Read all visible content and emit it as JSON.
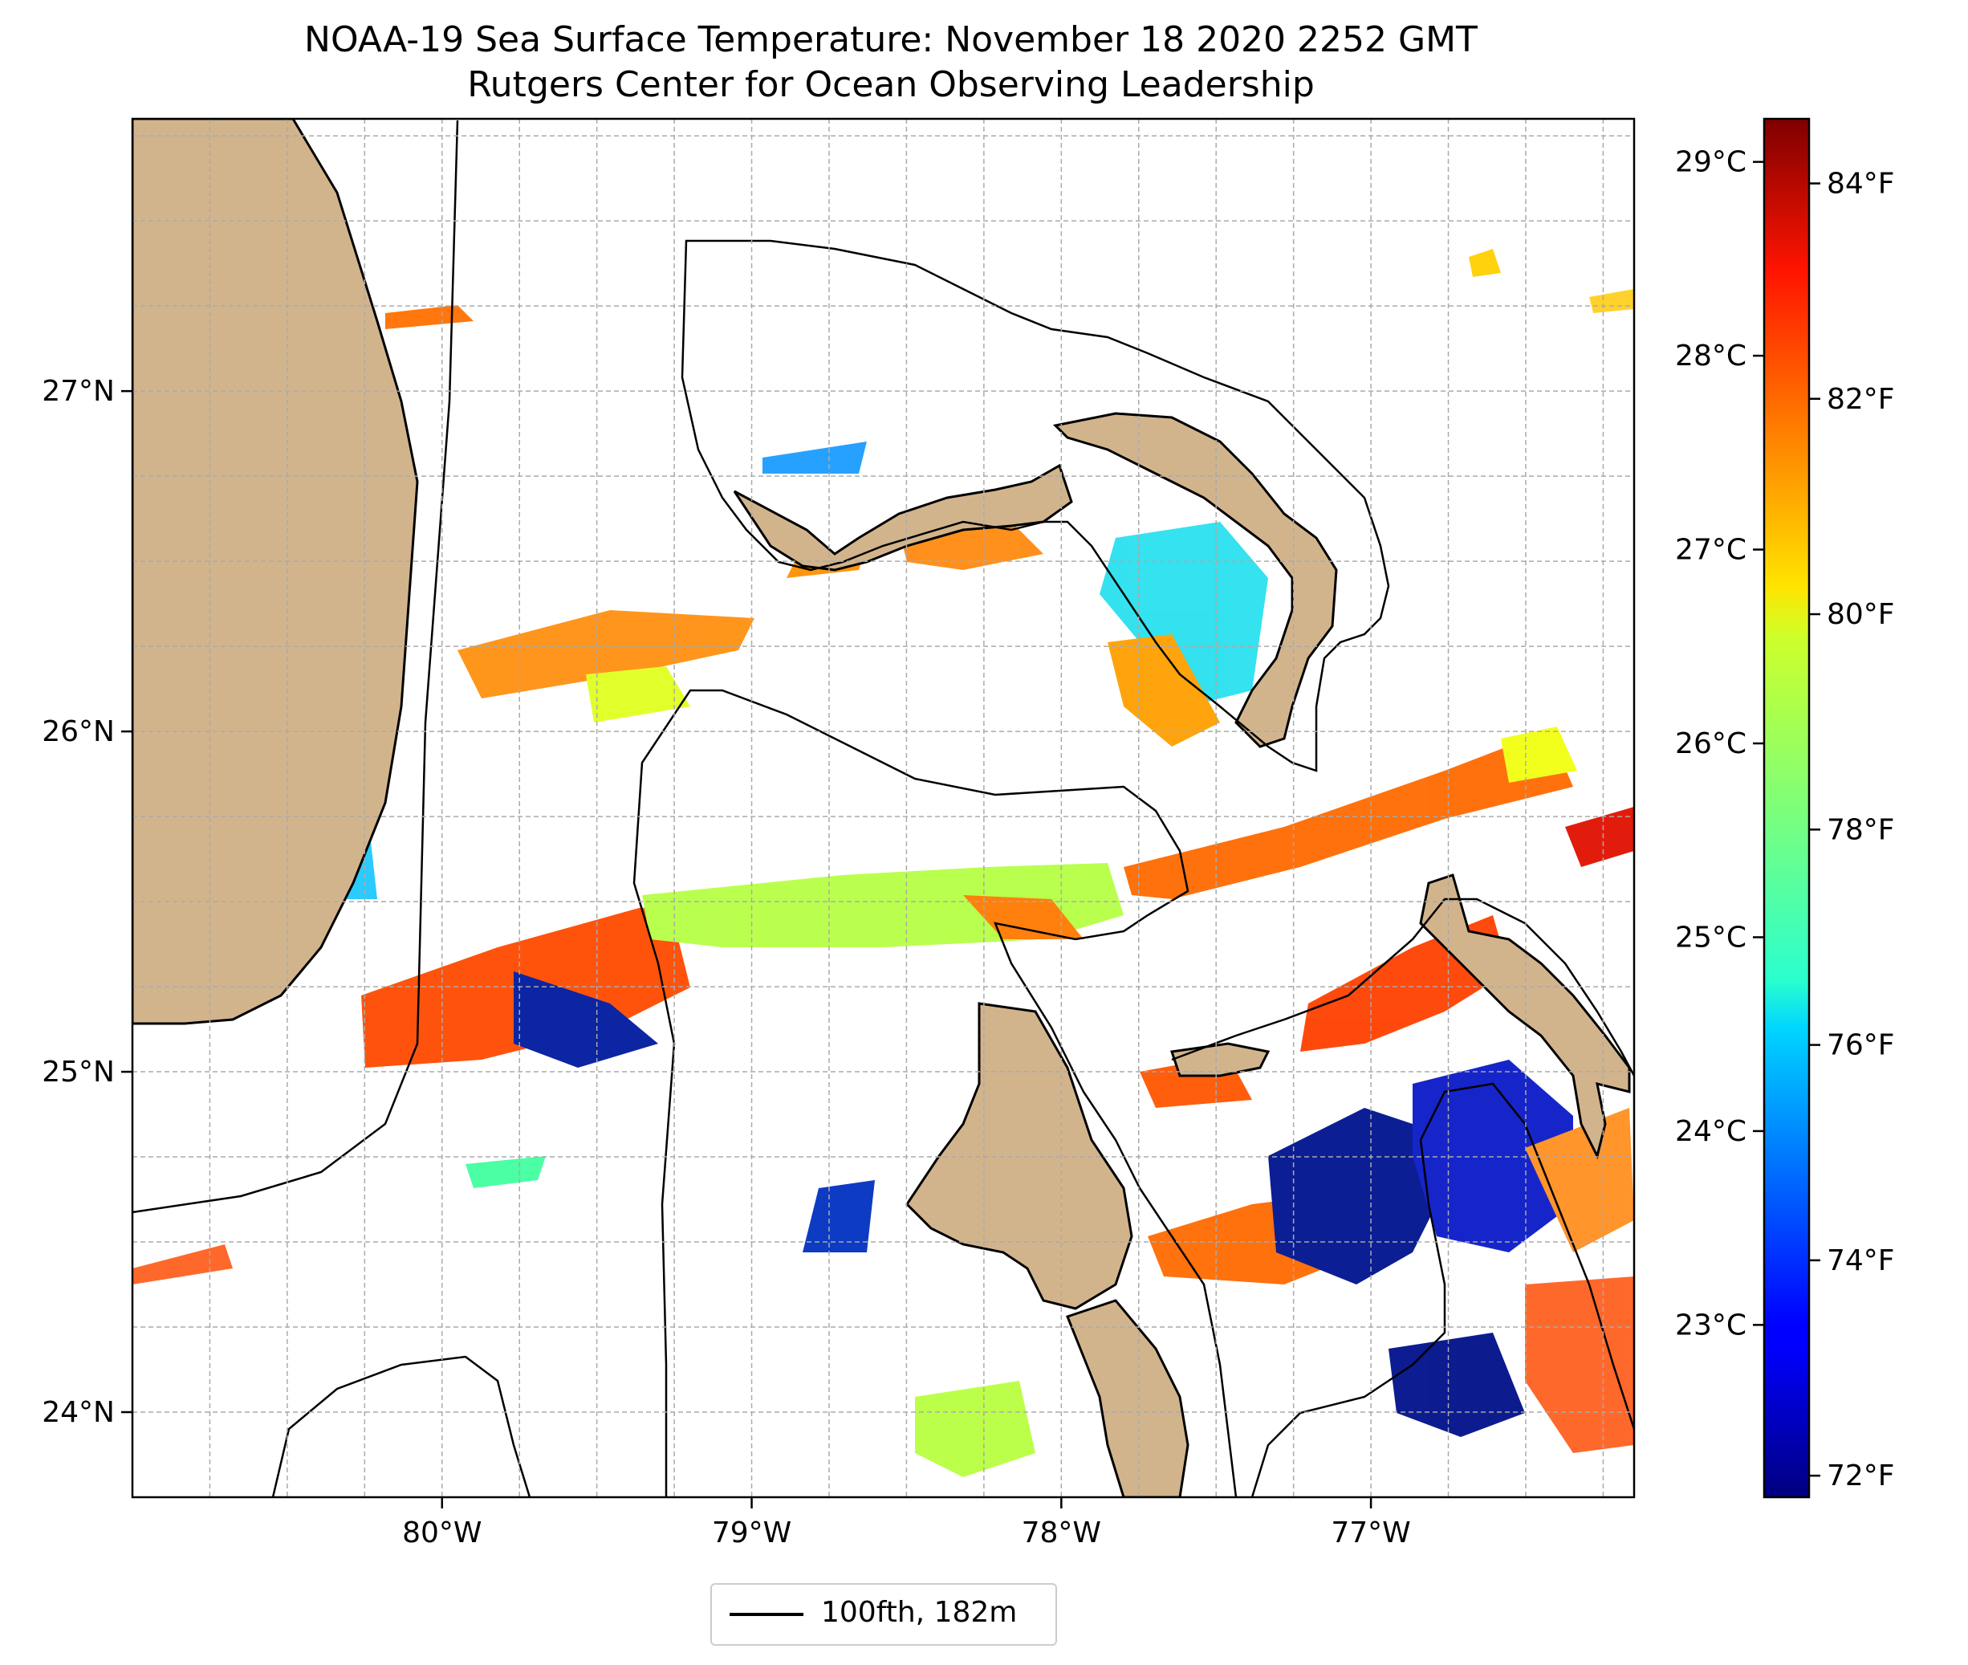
{
  "title": {
    "line1": "NOAA-19 Sea Surface Temperature: November 18 2020 2252 GMT",
    "line2": "Rutgers Center for Ocean Observing Leadership"
  },
  "map": {
    "lon_range": [
      -81.0,
      -76.15
    ],
    "lat_range": [
      23.75,
      27.8
    ],
    "lon_ticks": [
      {
        "value": -80,
        "label": "80°W"
      },
      {
        "value": -79,
        "label": "79°W"
      },
      {
        "value": -78,
        "label": "78°W"
      },
      {
        "value": -77,
        "label": "77°W"
      }
    ],
    "lat_ticks": [
      {
        "value": 24,
        "label": "24°N"
      },
      {
        "value": 25,
        "label": "25°N"
      },
      {
        "value": 26,
        "label": "26°N"
      },
      {
        "value": 27,
        "label": "27°N"
      }
    ],
    "gridlines": true,
    "land_color": "#d2b48c",
    "lake_color": "#9fbce8"
  },
  "colorbar": {
    "colormap": "jet",
    "fahrenheit_range": [
      71.8,
      84.6
    ],
    "celsius_ticks": [
      {
        "value": 23,
        "label": "23°C"
      },
      {
        "value": 24,
        "label": "24°C"
      },
      {
        "value": 25,
        "label": "25°C"
      },
      {
        "value": 26,
        "label": "26°C"
      },
      {
        "value": 27,
        "label": "27°C"
      },
      {
        "value": 28,
        "label": "28°C"
      },
      {
        "value": 29,
        "label": "29°C"
      }
    ],
    "fahrenheit_ticks": [
      {
        "value": 72,
        "label": "72°F"
      },
      {
        "value": 74,
        "label": "74°F"
      },
      {
        "value": 76,
        "label": "76°F"
      },
      {
        "value": 78,
        "label": "78°F"
      },
      {
        "value": 80,
        "label": "80°F"
      },
      {
        "value": 82,
        "label": "82°F"
      },
      {
        "value": 84,
        "label": "84°F"
      }
    ]
  },
  "legend": {
    "label": "100fth, 182m",
    "line_color": "#000000"
  }
}
